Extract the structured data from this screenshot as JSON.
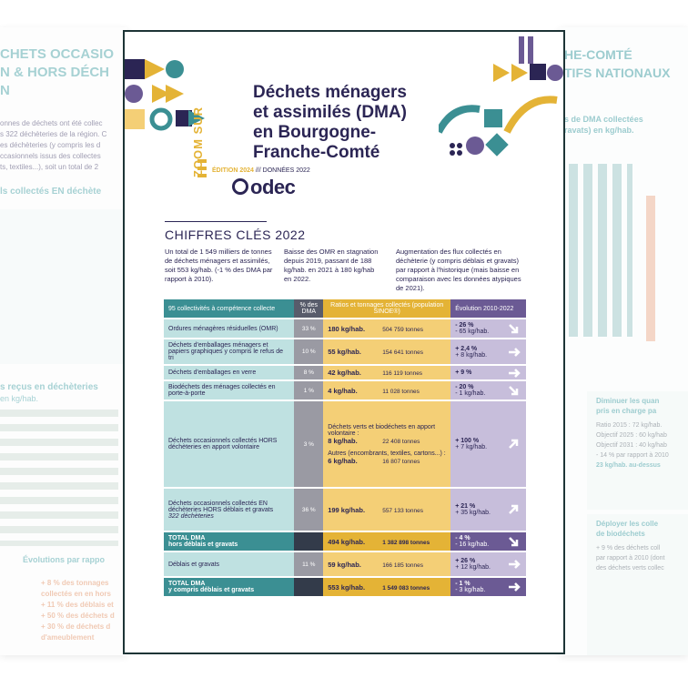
{
  "document": {
    "zoom_label": "ZOOM SUR",
    "title": "Déchets ménagers et assimilés (DMA) en Bourgogne-Franche-Comté",
    "edition": "ÉDITION 2024",
    "edition_sep": " /// ",
    "data_year": "DONNÉES 2022",
    "logo": "odec",
    "section_title": "CHIFFRES CLÉS 2022",
    "key_figures": [
      "Un total de 1 549 milliers de tonnes de déchets ménagers et assimilés, soit 553 kg/hab. (-1 % des DMA par rapport à 2010).",
      "Baisse des OMR en stagnation depuis 2019, passant de 188 kg/hab. en 2021 à 180 kg/hab en 2022.",
      "Augmentation des flux collectés en déchèterie (y compris déblais et gravats) par rapport à l'historique (mais baisse en comparaison avec les données atypiques de 2021)."
    ]
  },
  "table": {
    "headers": [
      "95 collectivités à compétence collecte",
      "% des DMA",
      "Ratios et tonnages collectés (population SINOE®)",
      "Évolution 2010-2022"
    ],
    "rows": [
      {
        "label": "Ordures ménagères résiduelles (OMR)",
        "share": "33 %",
        "ratio": "180 kg/hab.",
        "tons": "504 759 tonnes",
        "evo": "- 26 %",
        "evo_kg": "- 65 kg/hab.",
        "dir": "down"
      },
      {
        "label": "Déchets d'emballages ménagers et papiers graphiques y compris le refus de tri",
        "share": "10 %",
        "ratio": "55 kg/hab.",
        "tons": "154 641 tonnes",
        "evo": "+ 2,4 %",
        "evo_kg": "+ 8 kg/hab.",
        "dir": "right"
      },
      {
        "label": "Déchets d'emballages en verre",
        "share": "8 %",
        "ratio": "42 kg/hab.",
        "tons": "116 119 tonnes",
        "evo": "+ 9 %",
        "evo_kg": "",
        "dir": "right"
      },
      {
        "label": "Biodéchets des ménages collectés en porte-à-porte",
        "share": "1 %",
        "ratio": "4 kg/hab.",
        "tons": "11 028 tonnes",
        "evo": "- 20 %",
        "evo_kg": "- 1 kg/hab.",
        "dir": "down"
      },
      {
        "label": "Déchets occasionnels collectés HORS déchèteries en apport volontaire",
        "share": "3 %",
        "sub1_label": "Déchets verts et biodéchets en apport volontaire :",
        "sub1_ratio": "8 kg/hab.",
        "sub1_tons": "22 408 tonnes",
        "sub2_label": "Autres (encombrants, textiles, cartons...) :",
        "sub2_ratio": "6 kg/hab.",
        "sub2_tons": "16 807 tonnes",
        "evo": "+ 100 %",
        "evo_kg": "+ 7 kg/hab.",
        "dir": "up"
      },
      {
        "label": "Déchets occasionnels collectés EN déchèteries HORS déblais et gravats",
        "label_note": "322 déchèteries",
        "share": "36 %",
        "ratio": "199 kg/hab.",
        "tons": "557 133 tonnes",
        "evo": "+ 21 %",
        "evo_kg": "+ 35 kg/hab.",
        "dir": "up"
      }
    ],
    "total1": {
      "label": "TOTAL DMA",
      "label2": "hors déblais et gravats",
      "ratio": "494 kg/hab.",
      "tons": "1 382 898 tonnes",
      "evo": "- 4 %",
      "evo_kg": "- 16 kg/hab."
    },
    "debris": {
      "label": "Déblais et gravats",
      "share": "11 %",
      "ratio": "59 kg/hab.",
      "tons": "166 185 tonnes",
      "evo": "+ 26 %",
      "evo_kg": "+ 12 kg/hab."
    },
    "total2": {
      "label": "TOTAL DMA",
      "label2": "y compris déblais et gravats",
      "ratio": "553 kg/hab.",
      "tons": "1 549 083 tonnes",
      "evo": "- 1 %",
      "evo_kg": "- 3 kg/hab."
    }
  },
  "background_left": {
    "heading1": "CHETS OCCASIO",
    "heading2": "N & HORS DÉCH",
    "heading3": "N",
    "line1": "onnes de déchets ont été collec",
    "line2": "s 322 déchèteries de la région. C",
    "line3": "es déchèteries (y compris les d",
    "line4": "ccasionnels issus des collectes",
    "line5": "ts, textiles...), soit un total de 2",
    "sub1": "ls collectés EN déchète",
    "sub2": "s reçus en déchèteries",
    "sub2b": "en kg/hab.",
    "sub3": "Évolutions par rappo",
    "evo1": "+ 8 % des tonnages",
    "evo1b": "collectés en en hors",
    "evo2": "+ 11 % des déblais et",
    "evo3": "+ 50 % des déchets d",
    "evo4": "+ 30 % de déchets d",
    "evo4b": "d'ameublement"
  },
  "background_right": {
    "heading1": "HE-COMTÉ",
    "heading2": "TIFS NATIONAUX",
    "sub1": "s de DMA collectées",
    "sub1b": "ravats) en kg/hab.",
    "box1_title": "Diminuer les quan",
    "box1_title2": "pris en charge pa",
    "box1_l1": "Ratio 2015 : 72 kg/hab.",
    "box1_l2": "Objectif 2025 : 60 kg/hab",
    "box1_l3": "Objectif 2031 : 40 kg/hab",
    "box1_l4": "- 14 % par rapport à 2010",
    "box1_l5": "23 kg/hab. au-dessus",
    "box2_title": "Déployer les colle",
    "box2_title2": "de biodéchets",
    "box2_l1": "+ 9 % des déchets coll",
    "box2_l2": "par rapport à 2010 (dont",
    "box2_l3": "des déchets verts collec",
    "colors": {
      "teal": "#3b8f93",
      "gold": "#e4b336",
      "purple": "#6b5a94",
      "navy": "#2b2554"
    }
  }
}
